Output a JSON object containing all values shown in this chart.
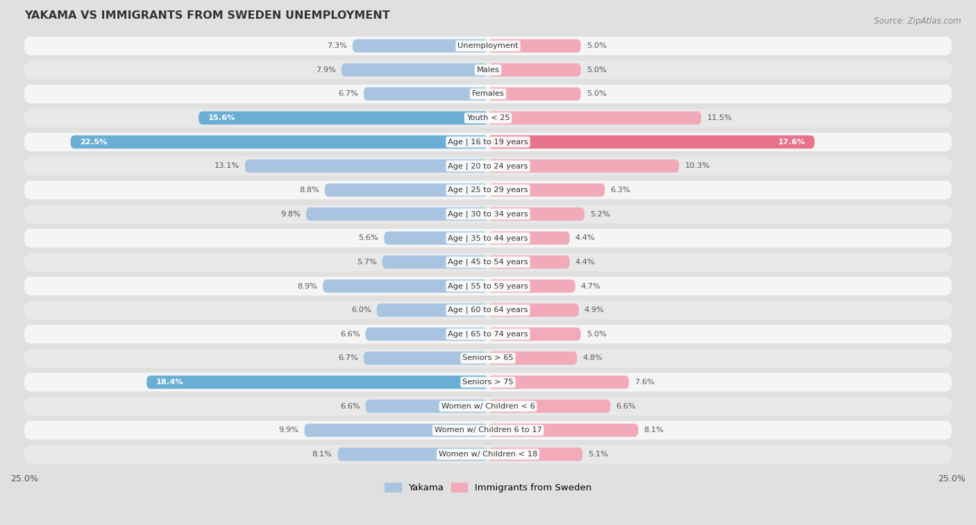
{
  "title": "YAKAMA VS IMMIGRANTS FROM SWEDEN UNEMPLOYMENT",
  "source": "Source: ZipAtlas.com",
  "categories": [
    "Unemployment",
    "Males",
    "Females",
    "Youth < 25",
    "Age | 16 to 19 years",
    "Age | 20 to 24 years",
    "Age | 25 to 29 years",
    "Age | 30 to 34 years",
    "Age | 35 to 44 years",
    "Age | 45 to 54 years",
    "Age | 55 to 59 years",
    "Age | 60 to 64 years",
    "Age | 65 to 74 years",
    "Seniors > 65",
    "Seniors > 75",
    "Women w/ Children < 6",
    "Women w/ Children 6 to 17",
    "Women w/ Children < 18"
  ],
  "yakama": [
    7.3,
    7.9,
    6.7,
    15.6,
    22.5,
    13.1,
    8.8,
    9.8,
    5.6,
    5.7,
    8.9,
    6.0,
    6.6,
    6.7,
    18.4,
    6.6,
    9.9,
    8.1
  ],
  "sweden": [
    5.0,
    5.0,
    5.0,
    11.5,
    17.6,
    10.3,
    6.3,
    5.2,
    4.4,
    4.4,
    4.7,
    4.9,
    5.0,
    4.8,
    7.6,
    6.6,
    8.1,
    5.1
  ],
  "yakama_color_normal": "#a8c4e0",
  "yakama_color_highlight": "#6aaed6",
  "sweden_color_normal": "#f2aabb",
  "sweden_color_highlight": "#e8728a",
  "row_color_odd": "#f5f5f5",
  "row_color_even": "#e8e8e8",
  "bg_color": "#e0e0e0",
  "axis_limit": 25.0,
  "highlight_threshold": 14.0,
  "legend_yakama": "Yakama",
  "legend_sweden": "Immigrants from Sweden"
}
